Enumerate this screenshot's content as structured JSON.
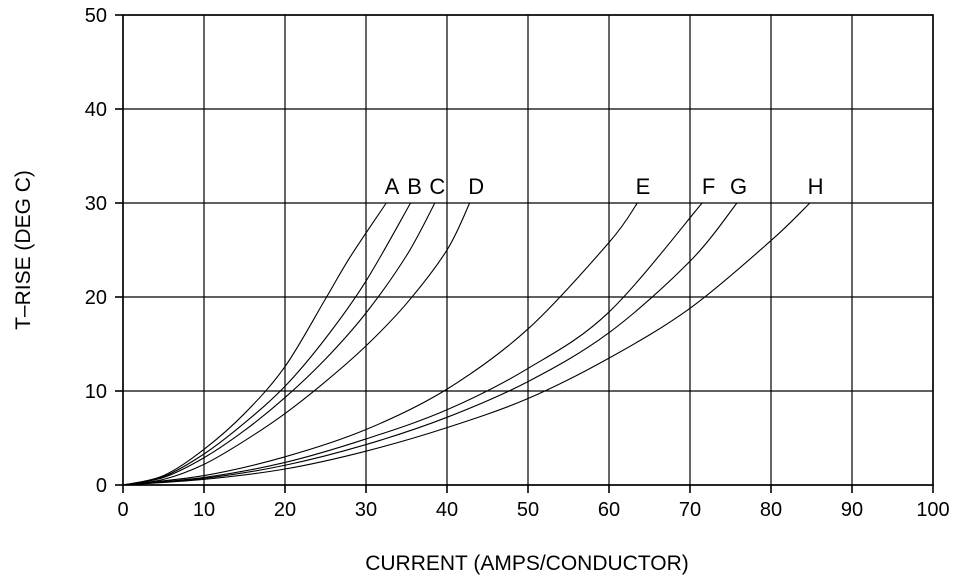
{
  "chart_data": {
    "type": "line",
    "title": "",
    "xlabel": "CURRENT (AMPS/CONDUCTOR)",
    "ylabel": "T–RISE (DEG C)",
    "xlim": [
      0,
      100
    ],
    "ylim": [
      0,
      50
    ],
    "xticks": [
      "0",
      "10",
      "20",
      "30",
      "40",
      "50",
      "60",
      "70",
      "80",
      "90",
      "100"
    ],
    "yticks": [
      "0",
      "10",
      "20",
      "30",
      "40",
      "50"
    ],
    "grid": true,
    "series": [
      {
        "name": "A",
        "x": [
          0,
          5,
          10,
          15,
          20,
          25,
          28,
          32.5
        ],
        "y": [
          0,
          1.0,
          3.8,
          7.6,
          12.6,
          19.8,
          24.2,
          30
        ]
      },
      {
        "name": "B",
        "x": [
          0,
          5,
          10,
          15,
          20,
          25,
          30,
          35.5
        ],
        "y": [
          0,
          0.9,
          3.3,
          6.6,
          10.5,
          15.6,
          21.7,
          30
        ]
      },
      {
        "name": "C",
        "x": [
          0,
          5,
          10,
          15,
          20,
          25,
          30,
          35,
          38.5
        ],
        "y": [
          0,
          0.8,
          2.9,
          5.8,
          9.3,
          13.4,
          18.3,
          24.4,
          30
        ]
      },
      {
        "name": "D",
        "x": [
          0,
          5,
          10,
          15,
          20,
          25,
          30,
          35,
          40,
          42.8
        ],
        "y": [
          0,
          0.6,
          2.2,
          4.7,
          7.6,
          11.0,
          14.8,
          19.3,
          25.0,
          30
        ]
      },
      {
        "name": "E",
        "x": [
          0,
          10,
          20,
          30,
          40,
          50,
          60,
          63.5
        ],
        "y": [
          0,
          1.0,
          3.0,
          5.9,
          10.2,
          16.6,
          25.8,
          30
        ]
      },
      {
        "name": "F",
        "x": [
          0,
          10,
          20,
          30,
          40,
          50,
          60,
          71.5
        ],
        "y": [
          0,
          0.8,
          2.4,
          4.9,
          8.0,
          12.4,
          18.4,
          30
        ]
      },
      {
        "name": "G",
        "x": [
          0,
          10,
          20,
          30,
          40,
          50,
          60,
          70,
          75.8
        ],
        "y": [
          0,
          0.7,
          2.1,
          4.3,
          7.2,
          11.0,
          16.2,
          23.8,
          30
        ]
      },
      {
        "name": "H",
        "x": [
          0,
          10,
          20,
          30,
          40,
          50,
          60,
          70,
          80,
          84.8
        ],
        "y": [
          0,
          0.6,
          1.7,
          3.6,
          6.1,
          9.2,
          13.5,
          18.8,
          26.0,
          30
        ]
      }
    ],
    "labels": [
      {
        "text": "A",
        "x": 33.2,
        "y": 31.8
      },
      {
        "text": "B",
        "x": 36.0,
        "y": 31.8
      },
      {
        "text": "C",
        "x": 38.8,
        "y": 31.8
      },
      {
        "text": "D",
        "x": 43.6,
        "y": 31.8
      },
      {
        "text": "E",
        "x": 64.2,
        "y": 31.8
      },
      {
        "text": "F",
        "x": 72.3,
        "y": 31.8
      },
      {
        "text": "G",
        "x": 76.0,
        "y": 31.8
      },
      {
        "text": "H",
        "x": 85.5,
        "y": 31.8
      }
    ]
  }
}
